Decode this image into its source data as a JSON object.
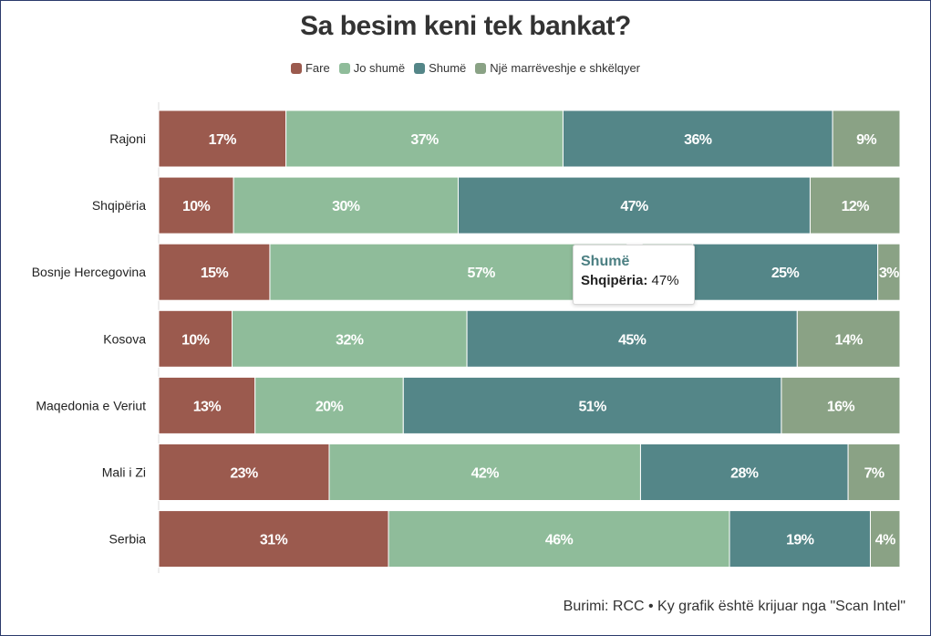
{
  "chart_data": {
    "type": "bar",
    "orientation": "horizontal",
    "stacked": true,
    "title": "Sa besim keni tek bankat?",
    "categories": [
      "Rajoni",
      "Shqipëria",
      "Bosnje Hercegovina",
      "Kosova",
      "Maqedonia e Veriut",
      "Mali i Zi",
      "Serbia"
    ],
    "series": [
      {
        "name": "Fare",
        "color": "#9b5a4e",
        "values": [
          17,
          10,
          15,
          10,
          13,
          23,
          31
        ]
      },
      {
        "name": "Jo shumë",
        "color": "#8fbc9a",
        "values": [
          37,
          30,
          57,
          32,
          20,
          42,
          46
        ]
      },
      {
        "name": "Shumë",
        "color": "#548688",
        "values": [
          36,
          47,
          25,
          45,
          51,
          28,
          19
        ]
      },
      {
        "name": "Një marrëveshje e shkëlqyer",
        "color": "#8aa285",
        "values": [
          9,
          12,
          3,
          14,
          16,
          7,
          4
        ]
      }
    ],
    "value_suffix": "%",
    "legend_position": "top-center",
    "grid": false
  },
  "tooltip": {
    "series": "Shumë",
    "category": "Shqipëria:",
    "value": "47%",
    "color": "#4b7f82"
  },
  "source": "Burimi: RCC • Ky grafik është krijuar nga \"Scan Intel\""
}
